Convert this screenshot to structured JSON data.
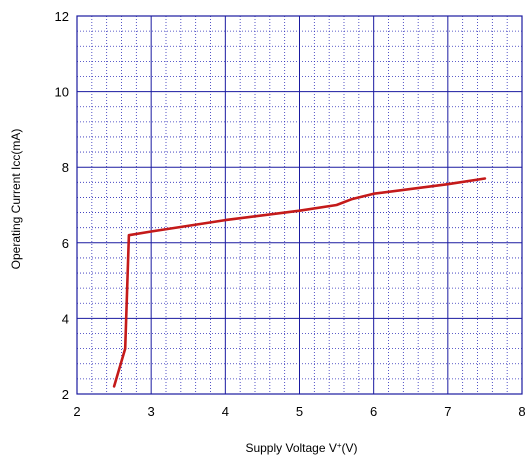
{
  "chart_data": {
    "type": "line",
    "title": "",
    "xlabel": {
      "main": "Supply Voltage V",
      "sup": "+",
      "tail": "(V)"
    },
    "ylabel": "Operating Current  Icc(mA)",
    "xlim": [
      2,
      8
    ],
    "ylim": [
      2,
      12
    ],
    "x_ticks": [
      "2",
      "3",
      "4",
      "5",
      "6",
      "7",
      "8"
    ],
    "y_ticks": [
      "2",
      "4",
      "6",
      "8",
      "10",
      "12"
    ],
    "x_minor_step": 0.2,
    "y_minor_step": 0.4,
    "grid": true,
    "legend": "none",
    "series": [
      {
        "color": "#c41a1a",
        "points": [
          [
            2.5,
            2.2
          ],
          [
            2.65,
            3.2
          ],
          [
            2.7,
            6.2
          ],
          [
            3.0,
            6.3
          ],
          [
            4.0,
            6.6
          ],
          [
            5.0,
            6.85
          ],
          [
            5.5,
            7.0
          ],
          [
            5.7,
            7.15
          ],
          [
            6.0,
            7.3
          ],
          [
            7.0,
            7.55
          ],
          [
            7.5,
            7.7
          ]
        ]
      }
    ],
    "colors": {
      "major_grid": "#1a1aa0",
      "minor_grid": "#2a2ab8",
      "frame": "#1a1aa0"
    }
  }
}
